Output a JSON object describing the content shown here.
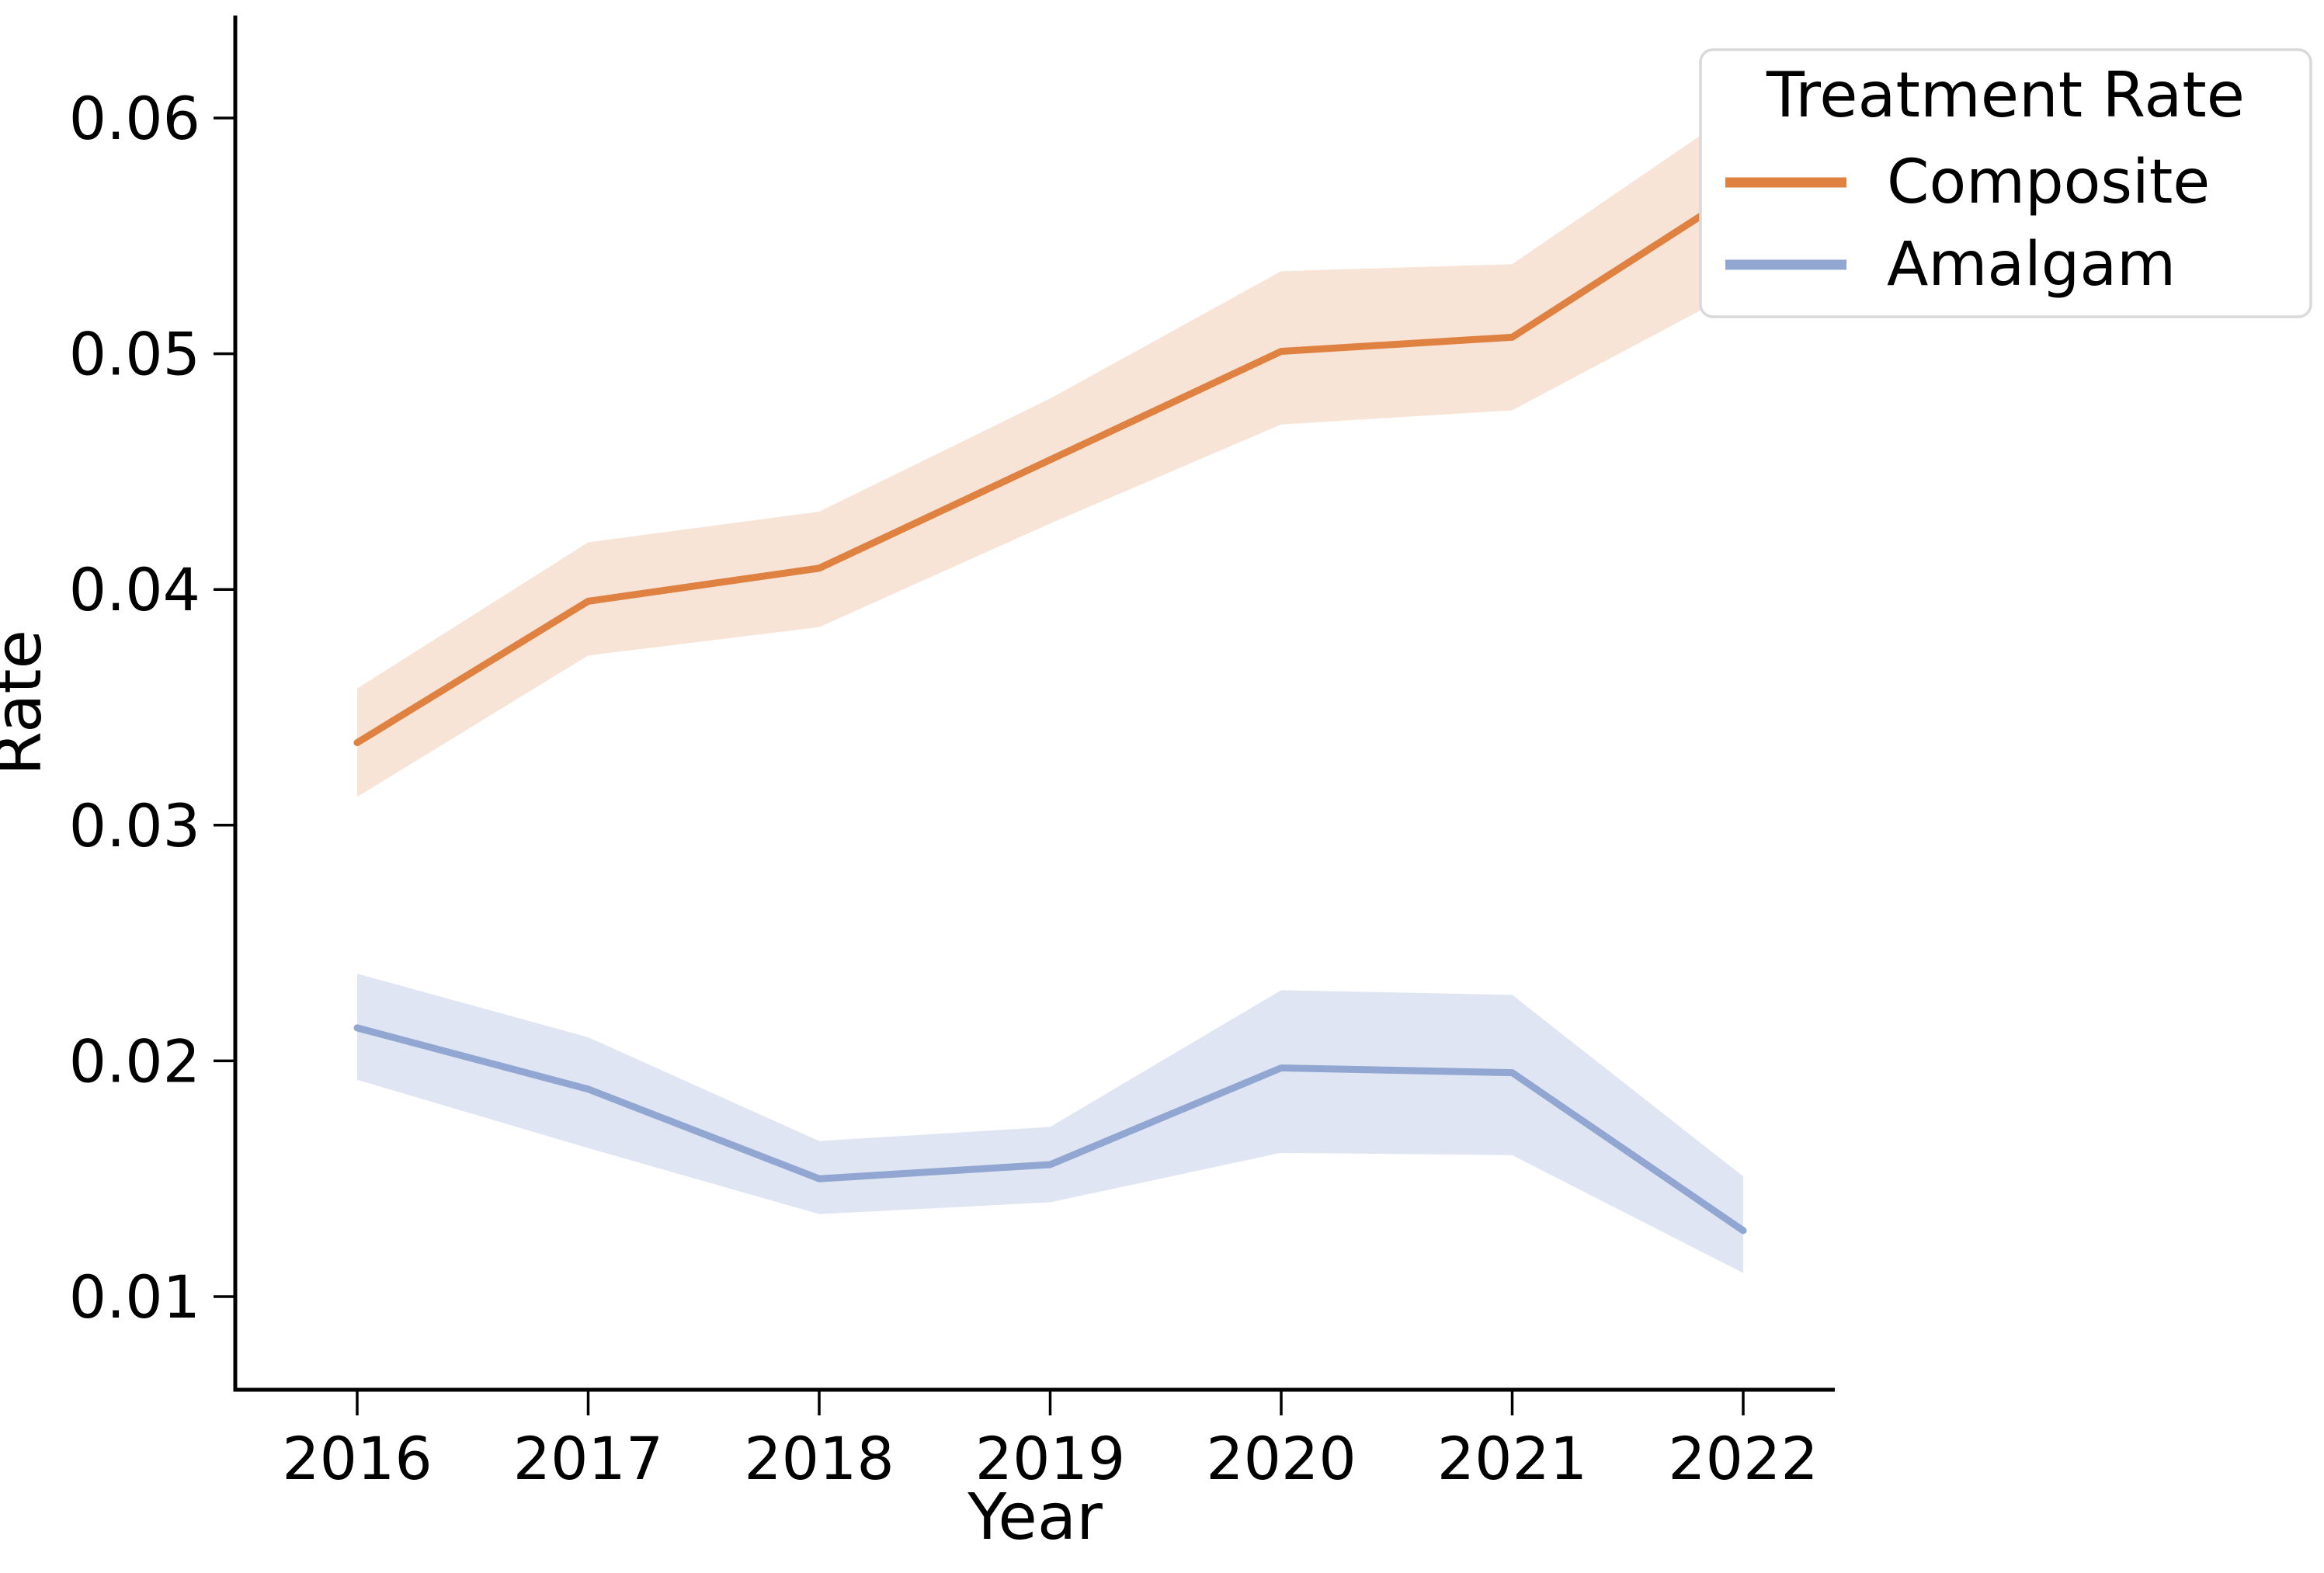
{
  "figure": {
    "background": "#ffffff"
  },
  "chart_data": {
    "type": "line",
    "title": "",
    "xlabel": "Year",
    "ylabel": "Rate",
    "legend_title": "Treatment Rate",
    "legend_position": "upper right",
    "legend_border_color": "#d9d9d9",
    "grid": false,
    "band_style": "confidence interval shading around each line",
    "x": [
      2016,
      2017,
      2018,
      2019,
      2020,
      2021,
      2022
    ],
    "x_tick_labels": [
      "2016",
      "2017",
      "2018",
      "2019",
      "2020",
      "2021",
      "2022"
    ],
    "y_ticks": [
      0.01,
      0.02,
      0.03,
      0.04,
      0.05,
      0.06
    ],
    "y_tick_labels": [
      "0.01",
      "0.02",
      "0.03",
      "0.04",
      "0.05",
      "0.06"
    ],
    "xlim": [
      2015.47,
      2022.4
    ],
    "ylim": [
      0.0061,
      0.0643
    ],
    "series": [
      {
        "name": "Composite",
        "color": "#df8141",
        "band_color": "rgba(223, 129, 65, 0.21)",
        "values": [
          0.0335,
          0.0395,
          0.0409,
          0.0455,
          0.0501,
          0.0507,
          0.057
        ],
        "ci_low": [
          0.0312,
          0.0372,
          0.0384,
          0.0428,
          0.047,
          0.0476,
          0.0528
        ],
        "ci_high": [
          0.0358,
          0.042,
          0.0433,
          0.0481,
          0.0535,
          0.0538,
          0.0605
        ]
      },
      {
        "name": "Amalgam",
        "color": "#91a7d2",
        "band_color": "rgba(145, 167, 210, 0.29)",
        "values": [
          0.0214,
          0.0188,
          0.015,
          0.0156,
          0.0197,
          0.0195,
          0.0128
        ],
        "ci_low": [
          0.0192,
          0.0163,
          0.0135,
          0.014,
          0.0161,
          0.016,
          0.011
        ],
        "ci_high": [
          0.0237,
          0.021,
          0.0166,
          0.0172,
          0.023,
          0.0228,
          0.0151
        ]
      }
    ]
  }
}
